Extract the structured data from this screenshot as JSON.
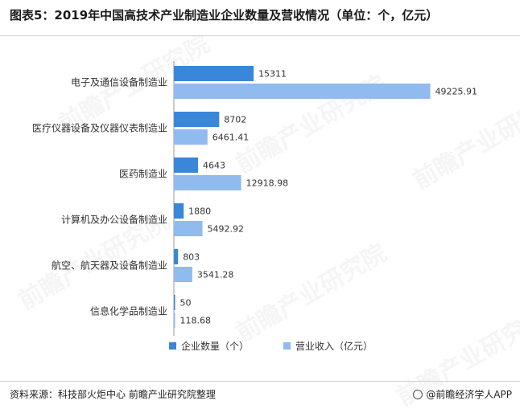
{
  "title": "图表5：2019年中国高技术产业制造业企业数量及营收情况（单位：个，亿元）",
  "source": "资料来源：科技部火炬中心 前瞻产业研究院整理",
  "brand": "@前瞻经济学人APP",
  "watermark": "前瞻产业研究院",
  "colors": {
    "series1": "#3a86d8",
    "series2": "#91baee"
  },
  "chart_data": {
    "type": "bar",
    "orientation": "horizontal",
    "categories": [
      "电子及通信设备制造业",
      "医疗仪器设备及仪器仪表制造业",
      "医药制造业",
      "计算机及办公设备制造业",
      "航空、航天器及设备制造业",
      "信息化学品制造业"
    ],
    "series": [
      {
        "name": "企业数量（个）",
        "values": [
          15311,
          8702,
          4643,
          1880,
          803,
          50
        ],
        "labels": [
          "15311",
          "8702",
          "4643",
          "1880",
          "803",
          "50"
        ]
      },
      {
        "name": "营业收入（亿元）",
        "values": [
          49225.91,
          6461.41,
          12918.98,
          5492.92,
          3541.28,
          118.68
        ],
        "labels": [
          "49225.91",
          "6461.41",
          "12918.98",
          "5492.92",
          "3541.28",
          "118.68"
        ]
      }
    ],
    "xlim": [
      0,
      51000
    ],
    "legend_position": "bottom"
  }
}
